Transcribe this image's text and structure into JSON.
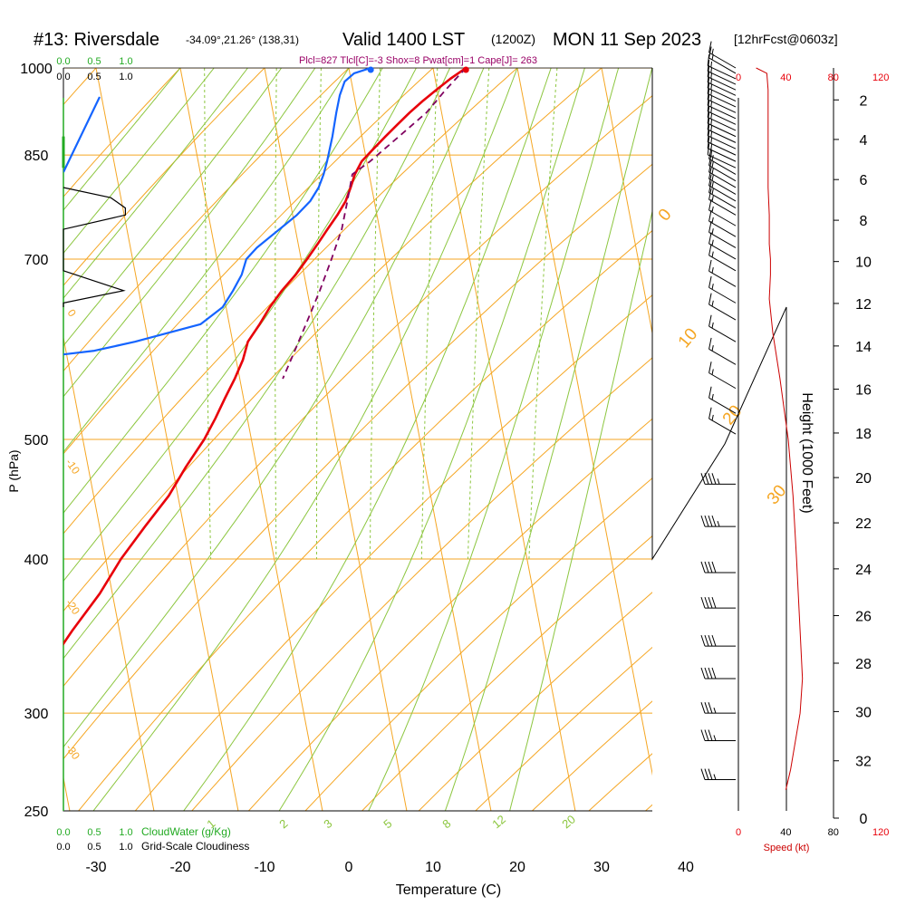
{
  "header": {
    "station": "#13: Riversdale",
    "coords": "-34.09°,21.26° (138,31)",
    "valid": "Valid 1400 LST",
    "utc": "(1200Z)",
    "date": "MON 11 Sep 2023",
    "fcst": "[12hrFcst@0603z]",
    "indices": "Plcl=827 Tlcl[C]=-3 Shox=8 Pwat[cm]=1 Cape[J]= 263"
  },
  "colors": {
    "isobar": "#f5a623",
    "isotherm": "#f5a623",
    "dry_adiabat": "#f5a623",
    "moist_adiabat": "#8cc63f",
    "mixing_ratio": "#8cc63f",
    "temperature": "#e8000a",
    "dewpoint": "#1464ff",
    "parcel": "#800060",
    "cloudwater": "#22aa22",
    "cloudiness": "#000000",
    "wind_speed": "#cc0000",
    "indices_text": "#990066"
  },
  "chart_data": {
    "type": "line",
    "title": "#13: Riversdale",
    "xlabel": "Temperature (C)",
    "ylabel": "P (hPa)",
    "y2label": "Height (1000 Feet)",
    "x_ticks": [
      -30,
      -20,
      -10,
      0,
      10,
      20,
      30,
      40
    ],
    "x_tick_labels": [
      "-30",
      "-20",
      "-10",
      "0",
      "10",
      "20",
      "30",
      "40"
    ],
    "p_ticks": [
      250,
      300,
      400,
      500,
      700,
      850,
      1000
    ],
    "p_tick_labels": [
      "250",
      "300",
      "400",
      "500",
      "700",
      "850",
      "1000"
    ],
    "p_range": [
      250,
      1000
    ],
    "x_range": [
      -34,
      36
    ],
    "skew": true,
    "height_ticks": [
      0,
      2,
      4,
      6,
      8,
      10,
      12,
      14,
      16,
      18,
      20,
      22,
      24,
      26,
      28,
      30,
      32
    ],
    "height_tick_labels": [
      "0",
      "2",
      "4",
      "6",
      "8",
      "10",
      "12",
      "14",
      "16",
      "18",
      "20",
      "22",
      "24",
      "26",
      "28",
      "30",
      "32"
    ],
    "speed_label": "Speed (kt)",
    "speed_ticks": [
      0,
      40,
      80,
      120
    ],
    "speed_tick_labels": [
      "0",
      "40",
      "80",
      "120"
    ],
    "cloudwater_label": "CloudWater (g/Kg)",
    "cloudwater_ticks": [
      "0.0",
      "0.5",
      "1.0"
    ],
    "cloudiness_label": "Grid-Scale Cloudiness",
    "cloudiness_ticks": [
      "0.0",
      "0.5",
      "1.0"
    ],
    "dry_adiabat_labels": [
      "0",
      "10",
      "20",
      "30"
    ],
    "isotherm_edge_labels": [
      "0",
      "-10",
      "-20",
      "-30"
    ],
    "mixing_ratio_labels": [
      "1",
      "2",
      "3",
      "5",
      "8",
      "12",
      "20"
    ],
    "series": [
      {
        "name": "Temperature",
        "style": "temperature",
        "points": [
          [
            13.9,
            1000
          ],
          [
            11.8,
            980
          ],
          [
            9.9,
            960
          ],
          [
            8.0,
            940
          ],
          [
            6.2,
            920
          ],
          [
            4.5,
            900
          ],
          [
            2.8,
            880
          ],
          [
            1.1,
            860
          ],
          [
            -0.6,
            840
          ],
          [
            -1.7,
            820
          ],
          [
            -2.5,
            800
          ],
          [
            -3.4,
            780
          ],
          [
            -4.7,
            760
          ],
          [
            -6.2,
            740
          ],
          [
            -7.7,
            720
          ],
          [
            -9.3,
            700
          ],
          [
            -11.0,
            680
          ],
          [
            -13.0,
            660
          ],
          [
            -14.8,
            640
          ],
          [
            -16.4,
            620
          ],
          [
            -18.2,
            600
          ],
          [
            -19.2,
            580
          ],
          [
            -20.6,
            560
          ],
          [
            -22.2,
            540
          ],
          [
            -23.8,
            520
          ],
          [
            -25.6,
            500
          ],
          [
            -28.4,
            475
          ],
          [
            -31.1,
            450
          ],
          [
            -34.6,
            425
          ],
          [
            -38.2,
            400
          ],
          [
            -41.5,
            375
          ],
          [
            -45.6,
            350
          ],
          [
            -49.7,
            325
          ],
          [
            -54.7,
            300
          ],
          [
            -57.2,
            285
          ],
          [
            -57.7,
            270
          ],
          [
            -57.7,
            260
          ]
        ]
      },
      {
        "name": "Dew point",
        "style": "dewpoint",
        "points": [
          [
            2.6,
            1000
          ],
          [
            0.5,
            990
          ],
          [
            -0.8,
            975
          ],
          [
            -1.7,
            950
          ],
          [
            -2.5,
            920
          ],
          [
            -3.5,
            880
          ],
          [
            -4.7,
            840
          ],
          [
            -5.4,
            820
          ],
          [
            -6.3,
            800
          ],
          [
            -7.6,
            780
          ],
          [
            -9.5,
            760
          ],
          [
            -11.9,
            740
          ],
          [
            -15.0,
            715
          ],
          [
            -16.5,
            700
          ],
          [
            -17.4,
            680
          ],
          [
            -18.8,
            660
          ],
          [
            -20.4,
            640
          ],
          [
            -23.4,
            620
          ],
          [
            -31.6,
            600
          ],
          [
            -36.6,
            590
          ],
          [
            -45.9,
            580
          ],
          [
            -63.7,
            560
          ]
        ]
      },
      {
        "name": "Parcel",
        "style": "parcel",
        "points": [
          [
            13.9,
            1000
          ],
          [
            11.0,
            960
          ],
          [
            8.2,
            920
          ],
          [
            4.4,
            880
          ],
          [
            0.4,
            840
          ],
          [
            -2.0,
            820
          ],
          [
            -3.2,
            780
          ],
          [
            -4.5,
            740
          ],
          [
            -6.4,
            700
          ],
          [
            -8.5,
            660
          ],
          [
            -10.9,
            620
          ],
          [
            -13.5,
            580
          ],
          [
            -14.9,
            560
          ]
        ]
      }
    ],
    "wind_barbs": [
      {
        "p": 1000,
        "dir": 300,
        "kt": 15
      },
      {
        "p": 990,
        "dir": 300,
        "kt": 15
      },
      {
        "p": 980,
        "dir": 295,
        "kt": 15
      },
      {
        "p": 970,
        "dir": 295,
        "kt": 15
      },
      {
        "p": 960,
        "dir": 295,
        "kt": 15
      },
      {
        "p": 950,
        "dir": 295,
        "kt": 15
      },
      {
        "p": 940,
        "dir": 295,
        "kt": 15
      },
      {
        "p": 930,
        "dir": 295,
        "kt": 15
      },
      {
        "p": 920,
        "dir": 295,
        "kt": 15
      },
      {
        "p": 910,
        "dir": 295,
        "kt": 15
      },
      {
        "p": 900,
        "dir": 295,
        "kt": 15
      },
      {
        "p": 890,
        "dir": 295,
        "kt": 15
      },
      {
        "p": 880,
        "dir": 295,
        "kt": 15
      },
      {
        "p": 870,
        "dir": 295,
        "kt": 15
      },
      {
        "p": 860,
        "dir": 295,
        "kt": 15
      },
      {
        "p": 850,
        "dir": 295,
        "kt": 15
      },
      {
        "p": 840,
        "dir": 295,
        "kt": 15
      },
      {
        "p": 830,
        "dir": 295,
        "kt": 15
      },
      {
        "p": 820,
        "dir": 300,
        "kt": 15
      },
      {
        "p": 810,
        "dir": 300,
        "kt": 15
      },
      {
        "p": 800,
        "dir": 300,
        "kt": 15
      },
      {
        "p": 790,
        "dir": 300,
        "kt": 15
      },
      {
        "p": 780,
        "dir": 300,
        "kt": 15
      },
      {
        "p": 770,
        "dir": 300,
        "kt": 15
      },
      {
        "p": 760,
        "dir": 300,
        "kt": 15
      },
      {
        "p": 745,
        "dir": 300,
        "kt": 15
      },
      {
        "p": 730,
        "dir": 300,
        "kt": 15
      },
      {
        "p": 715,
        "dir": 300,
        "kt": 15
      },
      {
        "p": 700,
        "dir": 300,
        "kt": 15
      },
      {
        "p": 685,
        "dir": 300,
        "kt": 15
      },
      {
        "p": 665,
        "dir": 300,
        "kt": 15
      },
      {
        "p": 645,
        "dir": 300,
        "kt": 15
      },
      {
        "p": 625,
        "dir": 300,
        "kt": 15
      },
      {
        "p": 600,
        "dir": 300,
        "kt": 15
      },
      {
        "p": 575,
        "dir": 300,
        "kt": 15
      },
      {
        "p": 550,
        "dir": 300,
        "kt": 15
      },
      {
        "p": 525,
        "dir": 300,
        "kt": 15
      },
      {
        "p": 505,
        "dir": 300,
        "kt": 15
      },
      {
        "p": 460,
        "dir": 270,
        "kt": 45
      },
      {
        "p": 425,
        "dir": 270,
        "kt": 45
      },
      {
        "p": 390,
        "dir": 270,
        "kt": 40
      },
      {
        "p": 365,
        "dir": 270,
        "kt": 40
      },
      {
        "p": 340,
        "dir": 270,
        "kt": 40
      },
      {
        "p": 320,
        "dir": 270,
        "kt": 40
      },
      {
        "p": 300,
        "dir": 270,
        "kt": 35
      },
      {
        "p": 285,
        "dir": 270,
        "kt": 35
      },
      {
        "p": 265,
        "dir": 270,
        "kt": 35
      }
    ],
    "wind_speed_profile": [
      [
        15,
        1000
      ],
      [
        24,
        990
      ],
      [
        25,
        960
      ],
      [
        25,
        900
      ],
      [
        25,
        850
      ],
      [
        25,
        800
      ],
      [
        26,
        760
      ],
      [
        26,
        720
      ],
      [
        27,
        700
      ],
      [
        27,
        680
      ],
      [
        26,
        650
      ],
      [
        29,
        610
      ],
      [
        35,
        560
      ],
      [
        42,
        500
      ],
      [
        46,
        450
      ],
      [
        49,
        400
      ],
      [
        52,
        350
      ],
      [
        54,
        320
      ],
      [
        52,
        300
      ],
      [
        44,
        270
      ],
      [
        40,
        260
      ]
    ],
    "cloudiness_profile": [
      [
        0,
        640
      ],
      [
        0.0,
        645
      ],
      [
        0.7,
        660
      ],
      [
        0.0,
        685
      ],
      [
        0.0,
        690
      ],
      [
        0.0,
        740
      ],
      [
        0.72,
        760
      ],
      [
        0.72,
        770
      ],
      [
        0.55,
        785
      ],
      [
        0.0,
        800
      ]
    ],
    "cloudwater_profile": [
      [
        0,
        250
      ],
      [
        0,
        1000
      ]
    ],
    "upper_dewpoint_segment": [
      [
        -34,
        303
      ],
      [
        -30,
        265
      ]
    ]
  }
}
